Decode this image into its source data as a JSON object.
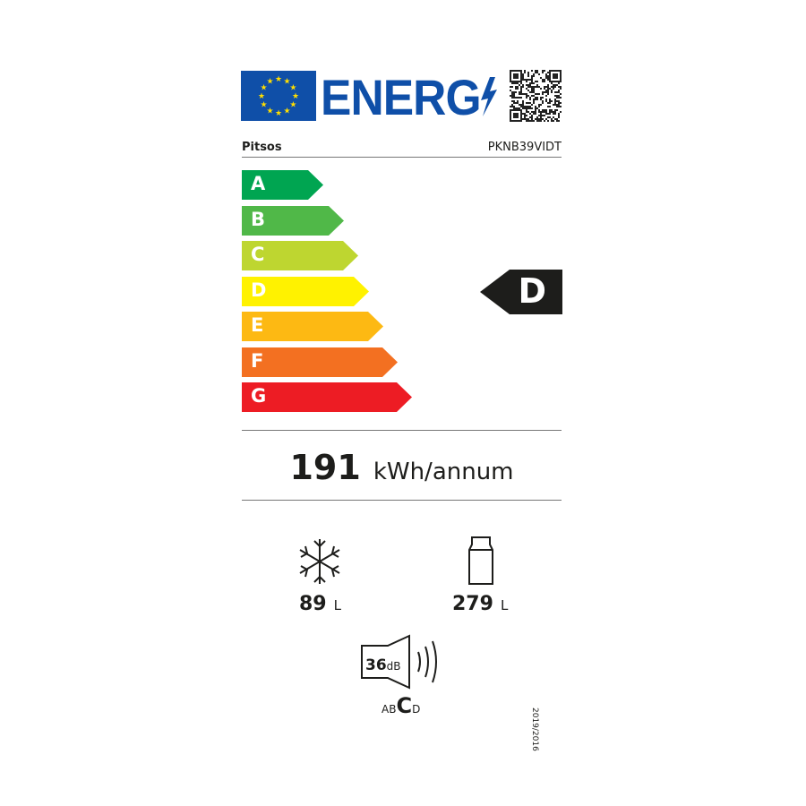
{
  "header": {
    "logo_text": "ENERG",
    "flag_icon": "eu-flag-icon",
    "qr_icon": "qr-code-icon"
  },
  "product": {
    "brand": "Pitsos",
    "model": "PKNB39VIDT"
  },
  "scale": {
    "classes": [
      {
        "letter": "A",
        "color": "#00a551"
      },
      {
        "letter": "B",
        "color": "#50b848"
      },
      {
        "letter": "C",
        "color": "#bed630"
      },
      {
        "letter": "D",
        "color": "#fff200"
      },
      {
        "letter": "E",
        "color": "#fdb913"
      },
      {
        "letter": "F",
        "color": "#f37021"
      },
      {
        "letter": "G",
        "color": "#ed1c24"
      }
    ],
    "rating": "D",
    "rating_color": "#1d1d1b"
  },
  "energy": {
    "value": "191",
    "unit": "kWh/annum"
  },
  "freezer": {
    "icon": "snowflake-icon",
    "value": "89",
    "unit": "L"
  },
  "fridge": {
    "icon": "bottle-icon",
    "value": "279",
    "unit": "L"
  },
  "noise": {
    "icon": "speaker-icon",
    "value": "36",
    "unit": "dB",
    "classes": [
      "A",
      "B",
      "C",
      "D"
    ],
    "selected": "C"
  },
  "regulation": "2019/2016"
}
